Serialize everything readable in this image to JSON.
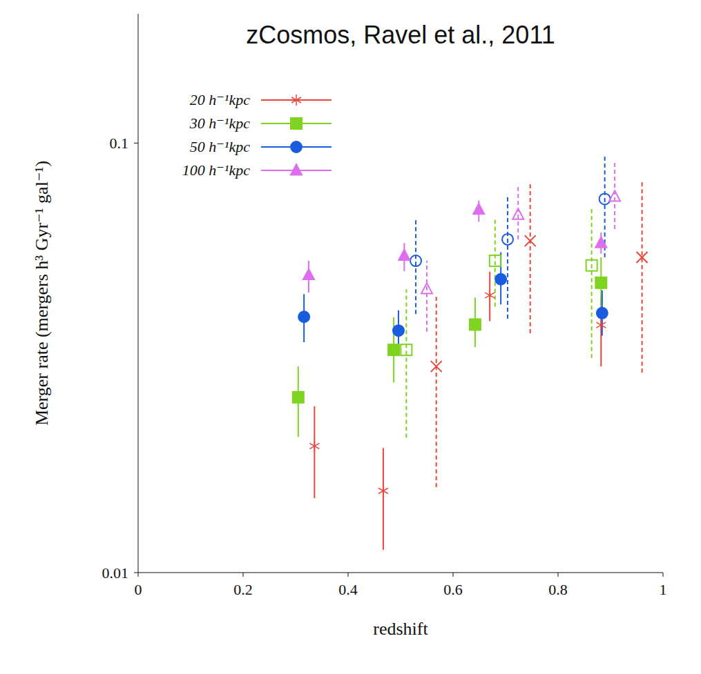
{
  "chart_data": {
    "type": "scatter",
    "title": "zCosmos, Ravel et al., 2011",
    "x_label": "redshift",
    "y_label": "Merger rate (mergers h³ Gyr⁻¹ gal⁻¹)",
    "xlim": [
      0,
      1
    ],
    "xticks": [
      0,
      0.2,
      0.4,
      0.6,
      0.8,
      1
    ],
    "ylim": [
      0.01,
      0.2
    ],
    "yticks": [
      0.01,
      0.1
    ],
    "log": "y",
    "grid": false,
    "legend": "upper left",
    "series": [
      {
        "name": "20 h⁻¹kpc",
        "color": "#e8463a",
        "marker": "asterisk",
        "x": [
          0.336,
          0.467,
          0.67,
          0.882
        ],
        "values": [
          0.0197,
          0.0155,
          0.0442,
          0.0377
        ],
        "error_low": [
          0.0149,
          0.0113,
          0.0385,
          0.0302
        ],
        "error_high": [
          0.0244,
          0.0195,
          0.0502,
          0.044
        ],
        "open_x": [
          0.568,
          0.747,
          0.96
        ],
        "open_values": [
          0.0302,
          0.0592,
          0.0542
        ],
        "open_error_low": [
          0.0158,
          0.0361,
          0.0292
        ],
        "open_error_high": [
          0.0445,
          0.0815,
          0.0815
        ]
      },
      {
        "name": "30 h⁻¹kpc",
        "color": "#7ed321",
        "marker": "square",
        "x": [
          0.305,
          0.487,
          0.642,
          0.882
        ],
        "values": [
          0.0256,
          0.033,
          0.0378,
          0.0473
        ],
        "error_low": [
          0.0207,
          0.0277,
          0.0335,
          0.0408
        ],
        "error_high": [
          0.0302,
          0.0393,
          0.0437,
          0.0542
        ],
        "open_x": [
          0.511,
          0.68,
          0.864
        ],
        "open_values": [
          0.033,
          0.0532,
          0.0519
        ],
        "open_error_low": [
          0.0206,
          0.0416,
          0.0316
        ],
        "open_error_high": [
          0.0457,
          0.0669,
          0.0713
        ]
      },
      {
        "name": "50 h⁻¹kpc",
        "color": "#1a5ce0",
        "marker": "circle",
        "x": [
          0.316,
          0.496,
          0.691,
          0.884
        ],
        "values": [
          0.0394,
          0.0366,
          0.0482,
          0.0402
        ],
        "error_low": [
          0.0344,
          0.0325,
          0.0421,
          0.0356
        ],
        "error_high": [
          0.0445,
          0.0408,
          0.0557,
          0.0454
        ],
        "open_x": [
          0.529,
          0.704,
          0.889
        ],
        "open_values": [
          0.0532,
          0.0597,
          0.0741
        ],
        "open_error_low": [
          0.04,
          0.039,
          0.0542
        ],
        "open_error_high": [
          0.0664,
          0.075,
          0.0941
        ]
      },
      {
        "name": "100 h⁻¹kpc",
        "color": "#dd6fee",
        "marker": "triangle",
        "x": [
          0.325,
          0.507,
          0.649,
          0.882
        ],
        "values": [
          0.0493,
          0.0547,
          0.07,
          0.0585
        ],
        "error_low": [
          0.0449,
          0.0503,
          0.0656,
          0.0553
        ],
        "error_high": [
          0.0532,
          0.0585,
          0.0735,
          0.0619
        ],
        "open_x": [
          0.55,
          0.724,
          0.908
        ],
        "open_values": [
          0.0457,
          0.0681,
          0.075
        ],
        "open_error_low": [
          0.0364,
          0.0597,
          0.0631
        ],
        "open_error_high": [
          0.0532,
          0.0802,
          0.0899
        ]
      }
    ]
  }
}
